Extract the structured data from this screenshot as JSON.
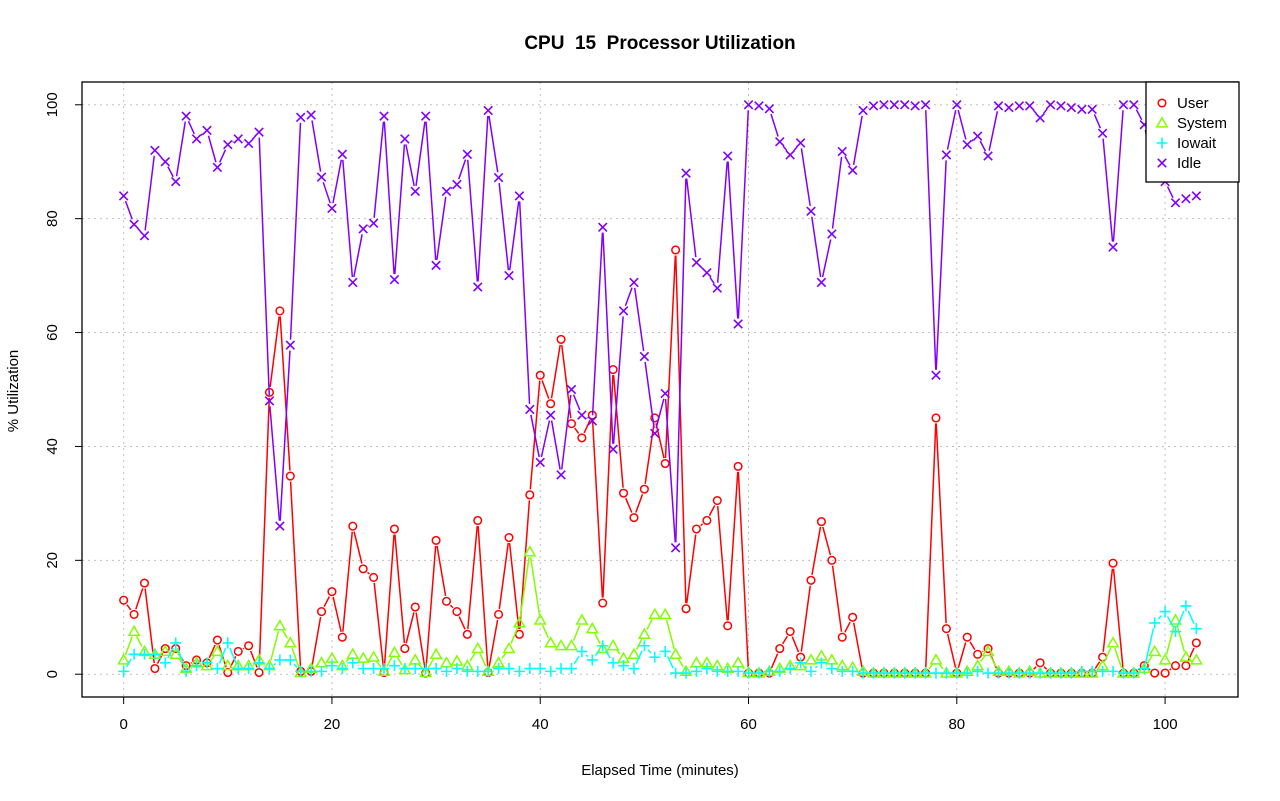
{
  "chart_data": {
    "type": "line",
    "title": "CPU  15  Processor Utilization",
    "xlabel": "Elapsed Time (minutes)",
    "ylabel": "% Utilization",
    "xlim": [
      -4,
      107
    ],
    "ylim": [
      -4,
      104
    ],
    "xticks": [
      0,
      20,
      40,
      60,
      80,
      100
    ],
    "yticks": [
      0,
      20,
      40,
      60,
      80,
      100
    ],
    "grid": true,
    "legend_position": "top-right",
    "x": [
      0,
      1,
      2,
      3,
      4,
      5,
      6,
      7,
      8,
      9,
      10,
      11,
      12,
      13,
      14,
      15,
      16,
      17,
      18,
      19,
      20,
      21,
      22,
      23,
      24,
      25,
      26,
      27,
      28,
      29,
      30,
      31,
      32,
      33,
      34,
      35,
      36,
      37,
      38,
      39,
      40,
      41,
      42,
      43,
      44,
      45,
      46,
      47,
      48,
      49,
      50,
      51,
      52,
      53,
      54,
      55,
      56,
      57,
      58,
      59,
      60,
      61,
      62,
      63,
      64,
      65,
      66,
      67,
      68,
      69,
      70,
      71,
      72,
      73,
      74,
      75,
      76,
      77,
      78,
      79,
      80,
      81,
      82,
      83,
      84,
      85,
      86,
      87,
      88,
      89,
      90,
      91,
      92,
      93,
      94,
      95,
      96,
      97,
      98,
      99,
      100,
      101,
      102,
      103
    ],
    "series": [
      {
        "name": "User",
        "color": "#ff0000",
        "marker": "circle",
        "values": [
          13,
          10.5,
          16,
          1,
          4.5,
          4.5,
          1.5,
          2.5,
          2,
          6,
          0.3,
          4,
          5,
          0.3,
          49.5,
          63.8,
          34.8,
          0.5,
          0.5,
          11,
          14.5,
          6.5,
          26,
          18.5,
          17,
          0.3,
          25.5,
          4.5,
          11.8,
          0.2,
          23.5,
          12.8,
          11,
          7,
          27,
          0.3,
          10.5,
          24,
          7,
          31.5,
          52.5,
          47.5,
          58.8,
          44,
          41.5,
          45.5,
          12.5,
          53.5,
          31.8,
          27.5,
          32.5,
          45,
          37,
          74.5,
          11.5,
          25.5,
          27,
          30.5,
          8.5,
          36.5,
          0.2,
          0.2,
          0.2,
          4.5,
          7.5,
          3,
          16.5,
          26.8,
          20,
          6.5,
          10,
          0.2,
          0.2,
          0.2,
          0.2,
          0.2,
          0.2,
          0.2,
          45,
          8,
          0.2,
          6.5,
          3.5,
          4.5,
          0.2,
          0.2,
          0.2,
          0.2,
          2,
          0.2,
          0.2,
          0.2,
          0.2,
          0.2,
          3,
          19.5,
          0.2,
          0.2,
          1.5,
          0.2,
          0.2,
          1.5,
          1.5,
          5.5
        ]
      },
      {
        "name": "System",
        "color": "#80ff00",
        "marker": "triangle",
        "values": [
          2.5,
          7.5,
          4,
          3.5,
          4,
          3.5,
          1,
          2,
          1.5,
          4,
          1.5,
          1.5,
          1.5,
          2.5,
          1.5,
          8.5,
          5.5,
          0.3,
          1,
          2,
          2.8,
          1.5,
          3.5,
          2.8,
          3,
          0.5,
          3.8,
          0.8,
          2.5,
          0.3,
          3.5,
          2,
          2.3,
          1.5,
          4.5,
          0.5,
          2,
          4.5,
          9,
          21.5,
          9.5,
          5.5,
          5,
          5,
          9.5,
          8,
          4.5,
          5,
          2.8,
          3.5,
          7,
          10.5,
          10.5,
          3.5,
          0.5,
          2,
          2,
          1.5,
          1,
          2,
          0.3,
          0.2,
          0.5,
          1,
          1.5,
          1.5,
          2.5,
          3.2,
          2.5,
          1.5,
          1.2,
          0.5,
          0.2,
          0.2,
          0.2,
          0.2,
          0.2,
          0.2,
          2.5,
          0.2,
          0.2,
          0.5,
          1.5,
          4,
          0.5,
          0.5,
          0.2,
          0.5,
          0.2,
          0.2,
          0.2,
          0.2,
          0.2,
          0.2,
          1.5,
          5.5,
          0.2,
          0.2,
          1,
          4,
          2.5,
          9.5,
          3,
          2.5
        ]
      },
      {
        "name": "Iowait",
        "color": "#00ffff",
        "marker": "plus",
        "values": [
          0.5,
          3.5,
          3.5,
          3.5,
          2,
          5.5,
          0.5,
          1.5,
          2,
          1,
          5.5,
          1,
          1,
          2,
          1,
          2.5,
          2.5,
          0.5,
          0.5,
          0.5,
          1.5,
          1,
          2,
          1,
          1,
          1,
          1.5,
          1,
          1,
          1,
          1,
          0.5,
          1,
          0.5,
          0.5,
          0.5,
          1,
          1,
          0.5,
          1,
          1,
          0.5,
          1,
          1,
          4,
          2.5,
          5,
          2,
          1.5,
          1,
          5,
          3,
          4,
          0.2,
          0.2,
          0.5,
          1,
          0.5,
          0.5,
          0.5,
          0.2,
          0.2,
          0.5,
          0.5,
          1,
          2,
          0.5,
          2,
          1,
          0.5,
          0.5,
          0.2,
          0.2,
          0.2,
          0.2,
          0.2,
          0.2,
          0.2,
          0.2,
          0.2,
          0.2,
          0.2,
          0.5,
          0.2,
          0.2,
          0.2,
          0.2,
          0.2,
          0.2,
          0.2,
          0.2,
          0.2,
          0.5,
          0.5,
          0.5,
          0.5,
          0.2,
          0.2,
          1,
          9,
          11,
          7.5,
          12,
          8
        ]
      },
      {
        "name": "Idle",
        "color": "#8000ff",
        "marker": "x",
        "values": [
          84,
          79,
          77,
          92,
          90,
          86.5,
          98,
          94,
          95.5,
          89,
          93,
          94,
          93.2,
          95.2,
          48,
          26,
          57.8,
          97.8,
          98.2,
          87.3,
          81.8,
          91.3,
          68.8,
          78.2,
          79.2,
          98,
          69.3,
          94,
          84.8,
          98,
          71.8,
          84.8,
          86,
          91.3,
          68,
          99,
          87.2,
          70,
          84,
          46.5,
          37.2,
          45.5,
          35,
          50,
          45.5,
          44.5,
          78.5,
          39.5,
          63.8,
          68.8,
          55.8,
          42.3,
          49.3,
          22.2,
          88,
          72.3,
          70.5,
          67.8,
          91,
          61.5,
          100,
          99.8,
          99.3,
          93.5,
          91.2,
          93.3,
          81.3,
          68.8,
          77.3,
          91.8,
          88.5,
          99,
          99.8,
          100,
          100,
          100,
          99.8,
          100,
          52.5,
          91.2,
          100,
          93,
          94.5,
          91,
          99.8,
          99.5,
          99.8,
          99.8,
          97.7,
          100,
          99.8,
          99.5,
          99.2,
          99.2,
          95,
          75,
          100,
          100,
          96.5,
          87.3,
          86.5,
          82.8,
          83.5,
          84
        ]
      }
    ]
  }
}
